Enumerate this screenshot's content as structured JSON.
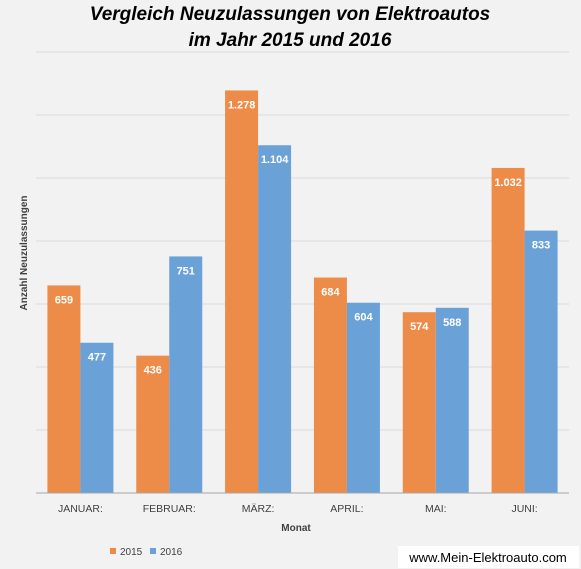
{
  "chart_data": {
    "type": "bar",
    "title_lines": [
      "Vergleich Neuzulassungen von Elektroautos",
      "im Jahr 2015 und 2016"
    ],
    "xlabel": "Monat",
    "ylabel": "Anzahl Neuzulassungen",
    "categories": [
      "JANUAR:",
      "FEBRUAR:",
      "MÄRZ:",
      "APRIL:",
      "MAI:",
      "JUNI:"
    ],
    "series": [
      {
        "name": "2015",
        "color": "#ed8c48",
        "values": [
          659,
          436,
          1278,
          684,
          574,
          1032
        ],
        "labels": [
          "659",
          "436",
          "1.278",
          "684",
          "574",
          "1.032"
        ]
      },
      {
        "name": "2016",
        "color": "#6aa2d8",
        "values": [
          477,
          751,
          1104,
          604,
          588,
          833
        ],
        "labels": [
          "477",
          "751",
          "1.104",
          "604",
          "588",
          "833"
        ]
      }
    ],
    "ylim": [
      0,
      1400
    ],
    "gridlines": true,
    "y_tick_labels_shown": false,
    "legend_position": "bottom-left"
  },
  "watermark": "www.Mein-Elektroauto.com"
}
